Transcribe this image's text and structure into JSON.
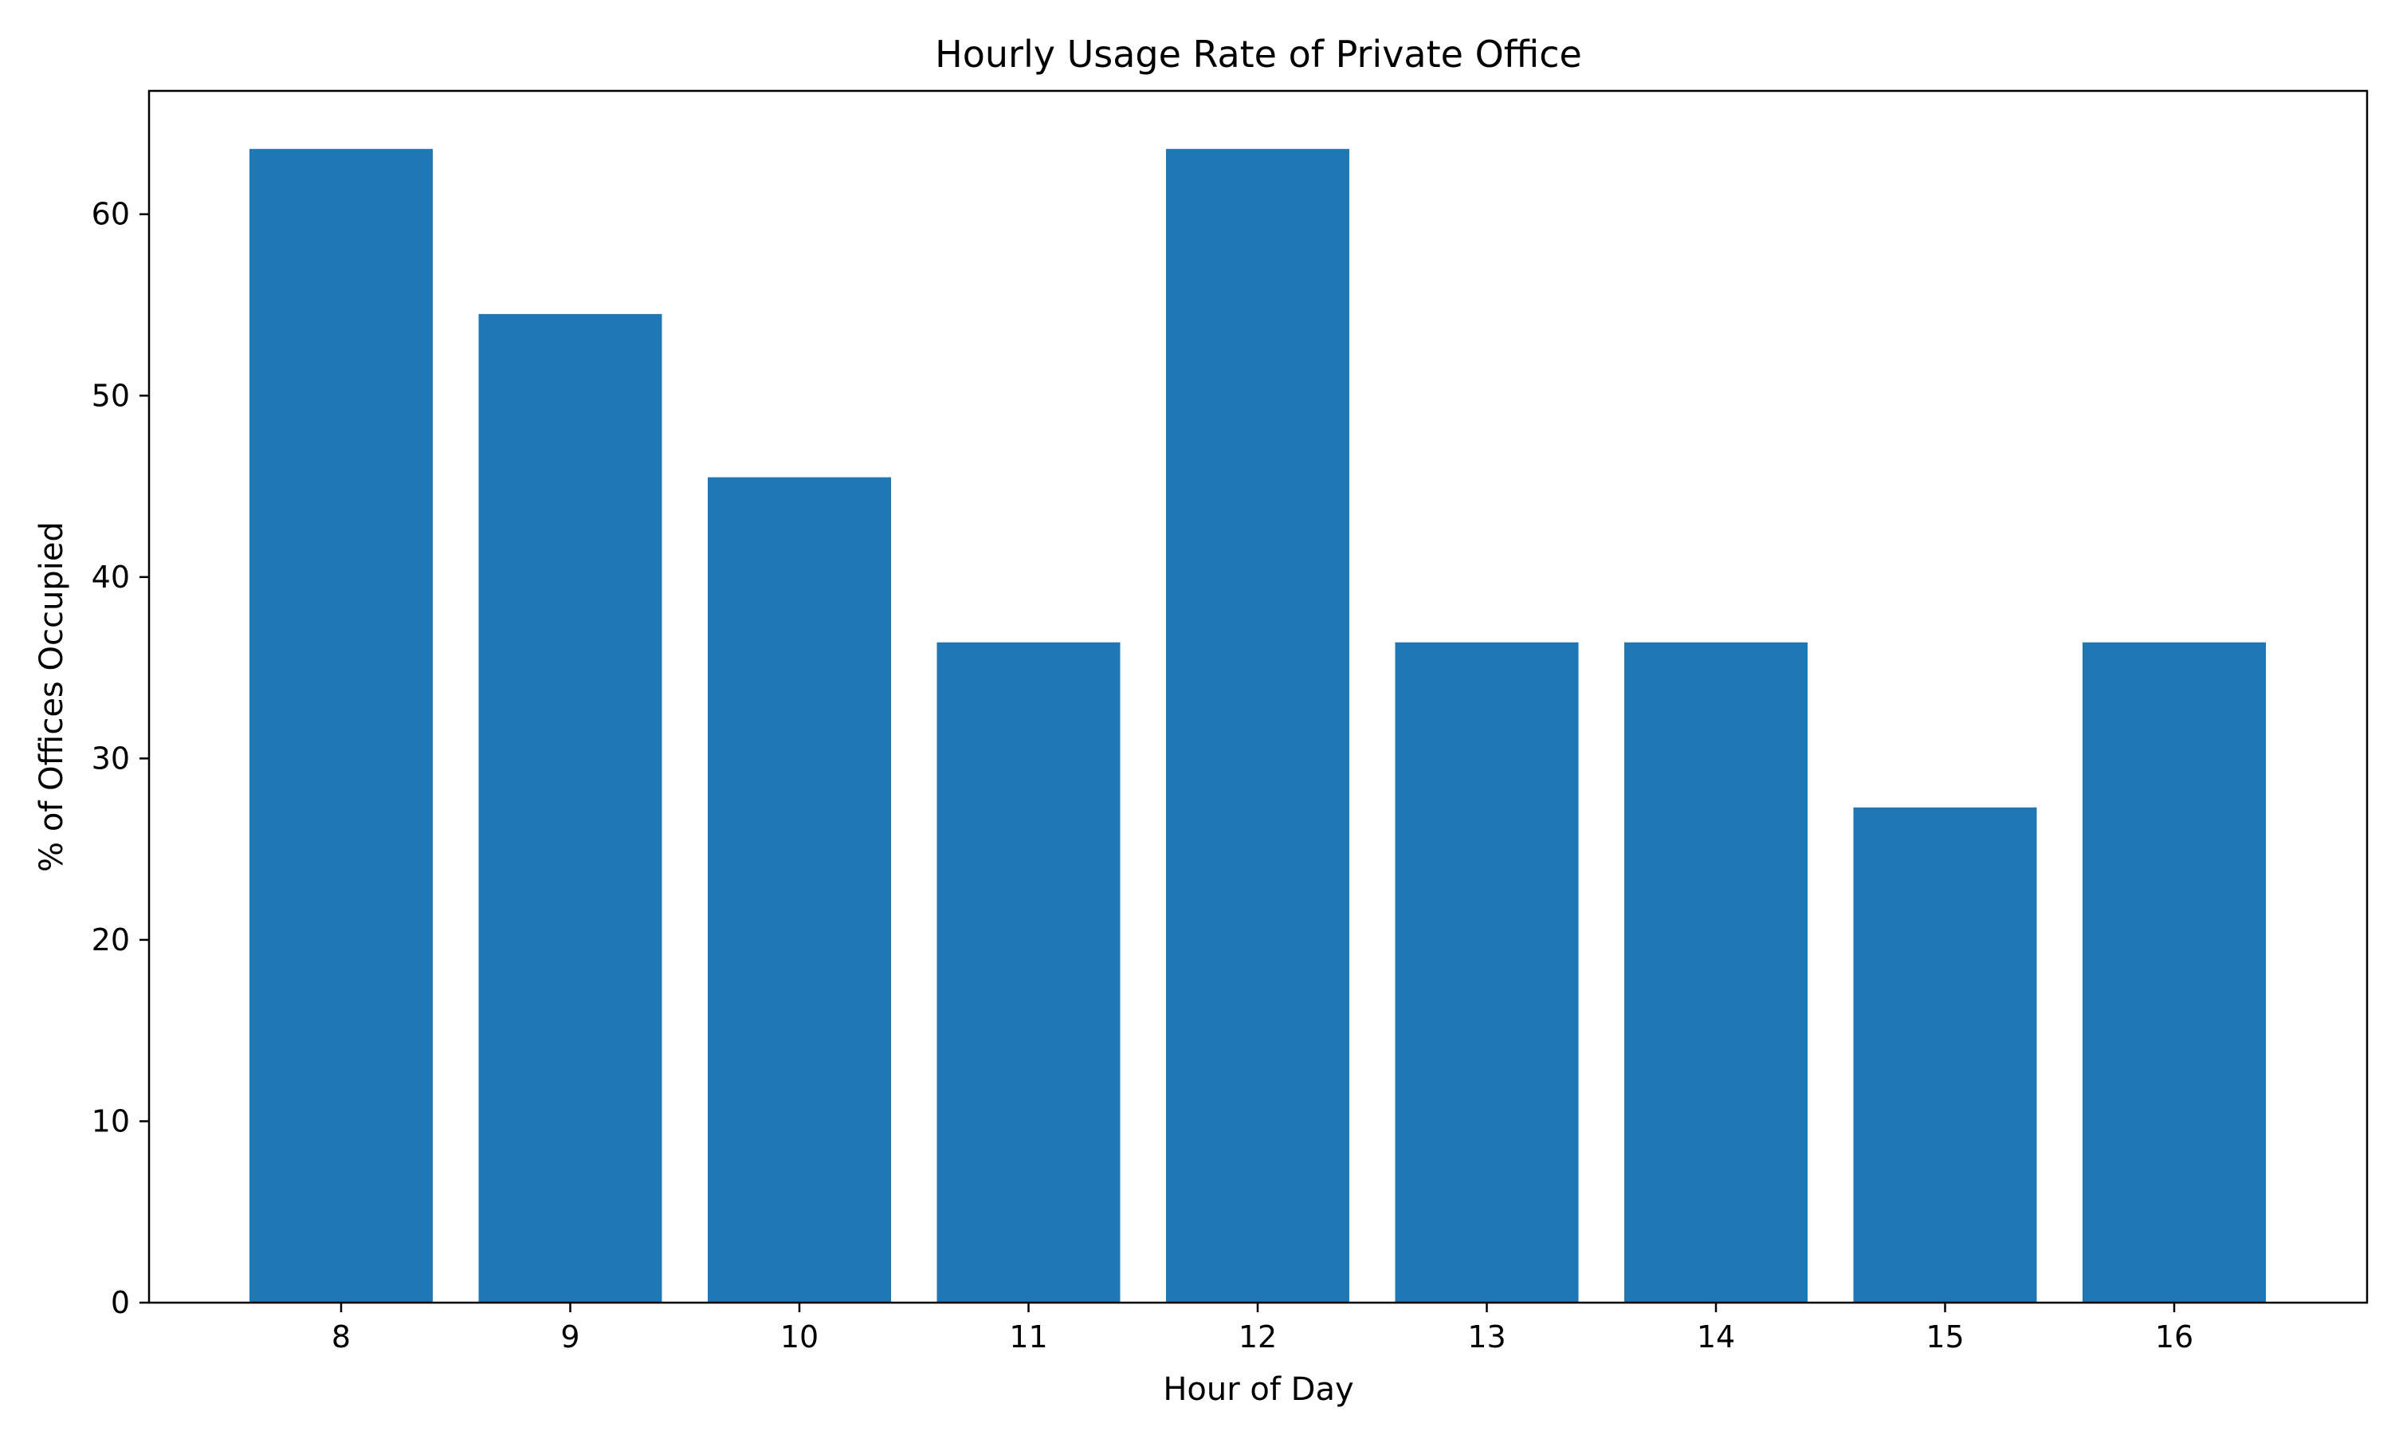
{
  "chart_data": {
    "type": "bar",
    "title": "Hourly Usage Rate of Private Office",
    "xlabel": "Hour of Day",
    "ylabel": "% of Offices Occupied",
    "categories": [
      "8",
      "9",
      "10",
      "11",
      "12",
      "13",
      "14",
      "15",
      "16"
    ],
    "values": [
      63.6,
      54.5,
      45.5,
      36.4,
      63.6,
      36.4,
      36.4,
      27.3,
      36.4
    ],
    "ylim": [
      0,
      66.8
    ],
    "yticks": [
      0,
      10,
      20,
      30,
      40,
      50,
      60
    ],
    "ytick_labels": [
      "0",
      "10",
      "20",
      "30",
      "40",
      "50",
      "60"
    ],
    "grid": false,
    "colors": {
      "bar": "#1f77b4",
      "axis": "#000000",
      "background": "#ffffff"
    }
  }
}
